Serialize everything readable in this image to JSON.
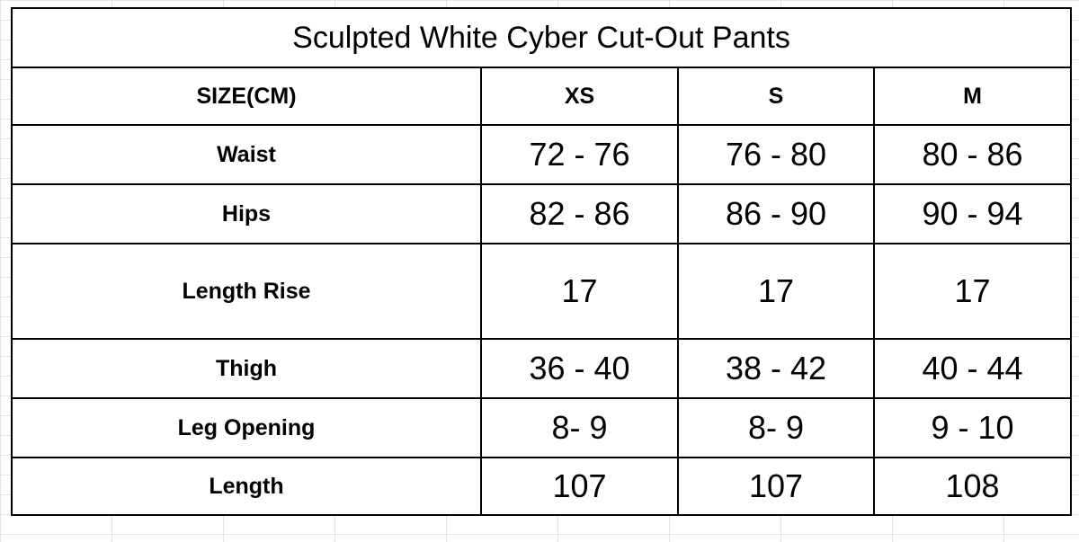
{
  "table": {
    "title": "Sculpted White Cyber Cut-Out Pants",
    "header_label": "SIZE(CM)",
    "sizes": [
      "XS",
      "S",
      "M"
    ],
    "rows": [
      {
        "label": "Waist",
        "values": [
          "72 - 76",
          "76 - 80",
          "80  - 86"
        ]
      },
      {
        "label": "Hips",
        "values": [
          "82 - 86",
          "86 - 90",
          "90 - 94"
        ]
      },
      {
        "label": "Length Rise",
        "values": [
          "17",
          "17",
          "17"
        ]
      },
      {
        "label": "Thigh",
        "values": [
          "36 - 40",
          "38 - 42",
          "40 - 44"
        ]
      },
      {
        "label": "Leg Opening",
        "values": [
          "8- 9",
          "8- 9",
          "9 - 10"
        ]
      },
      {
        "label": "Length",
        "values": [
          "107",
          "107",
          "108"
        ]
      }
    ]
  }
}
